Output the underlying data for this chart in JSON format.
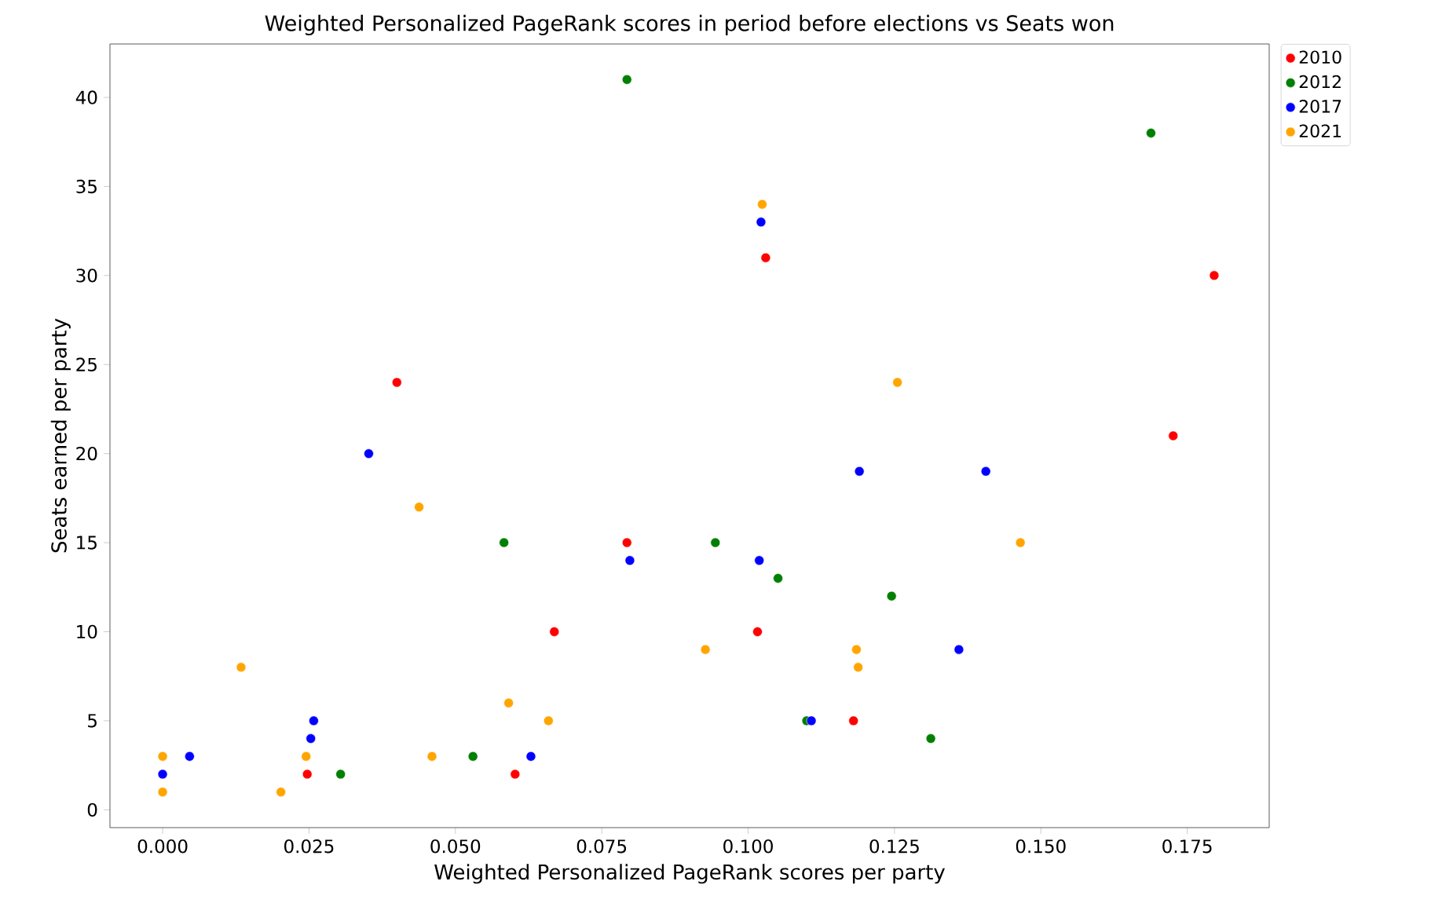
{
  "chart_data": {
    "type": "scatter",
    "title": "Weighted Personalized PageRank scores in period before elections vs Seats won",
    "xlabel": "Weighted Personalized PageRank scores per party",
    "ylabel": "Seats earned per party",
    "xlim": [
      -0.009,
      0.189
    ],
    "ylim": [
      -1,
      43
    ],
    "xticks": [
      {
        "value": 0,
        "label": "0.000"
      },
      {
        "value": 0.025,
        "label": "0.025"
      },
      {
        "value": 0.05,
        "label": "0.050"
      },
      {
        "value": 0.075,
        "label": "0.075"
      },
      {
        "value": 0.1,
        "label": "0.100"
      },
      {
        "value": 0.125,
        "label": "0.125"
      },
      {
        "value": 0.15,
        "label": "0.150"
      },
      {
        "value": 0.175,
        "label": "0.175"
      }
    ],
    "yticks": [
      0,
      5,
      10,
      15,
      20,
      25,
      30,
      35,
      40
    ],
    "grid": false,
    "legend": "top right",
    "marker": "circle",
    "series": [
      {
        "name": "2010",
        "color": "#ff0000",
        "x": [
          0.04,
          0.0793,
          0.0669,
          0.0602,
          0.0247,
          0.103,
          0.1016,
          0.118,
          0.1796,
          0.1726
        ],
        "values": [
          24,
          15,
          10,
          2,
          2,
          31,
          10,
          5,
          30,
          21
        ]
      },
      {
        "name": "2012",
        "color": "#008000",
        "x": [
          0.0793,
          0.1688,
          0.0583,
          0.0944,
          0.1051,
          0.1245,
          0.11,
          0.1312,
          0.0304,
          0.053
        ],
        "values": [
          41,
          38,
          15,
          15,
          13,
          12,
          5,
          4,
          2,
          3
        ]
      },
      {
        "name": "2017",
        "color": "#0000ff",
        "x": [
          0.1022,
          0.0352,
          0.119,
          0.1406,
          0.0798,
          0.1019,
          0.136,
          0.1108,
          0.0258,
          0.0253,
          0.0046,
          0.0,
          0.0629
        ],
        "values": [
          33,
          20,
          19,
          19,
          14,
          14,
          9,
          5,
          5,
          4,
          3,
          2,
          3
        ]
      },
      {
        "name": "2021",
        "color": "#ffa500",
        "x": [
          0.1024,
          0.1255,
          0.0438,
          0.1465,
          0.0927,
          0.1185,
          0.1188,
          0.0134,
          0.0591,
          0.0659,
          0.046,
          0.0245,
          0.0,
          0.0,
          0.0202
        ],
        "values": [
          34,
          24,
          17,
          15,
          9,
          9,
          8,
          8,
          6,
          5,
          3,
          3,
          3,
          1,
          1
        ]
      }
    ]
  }
}
